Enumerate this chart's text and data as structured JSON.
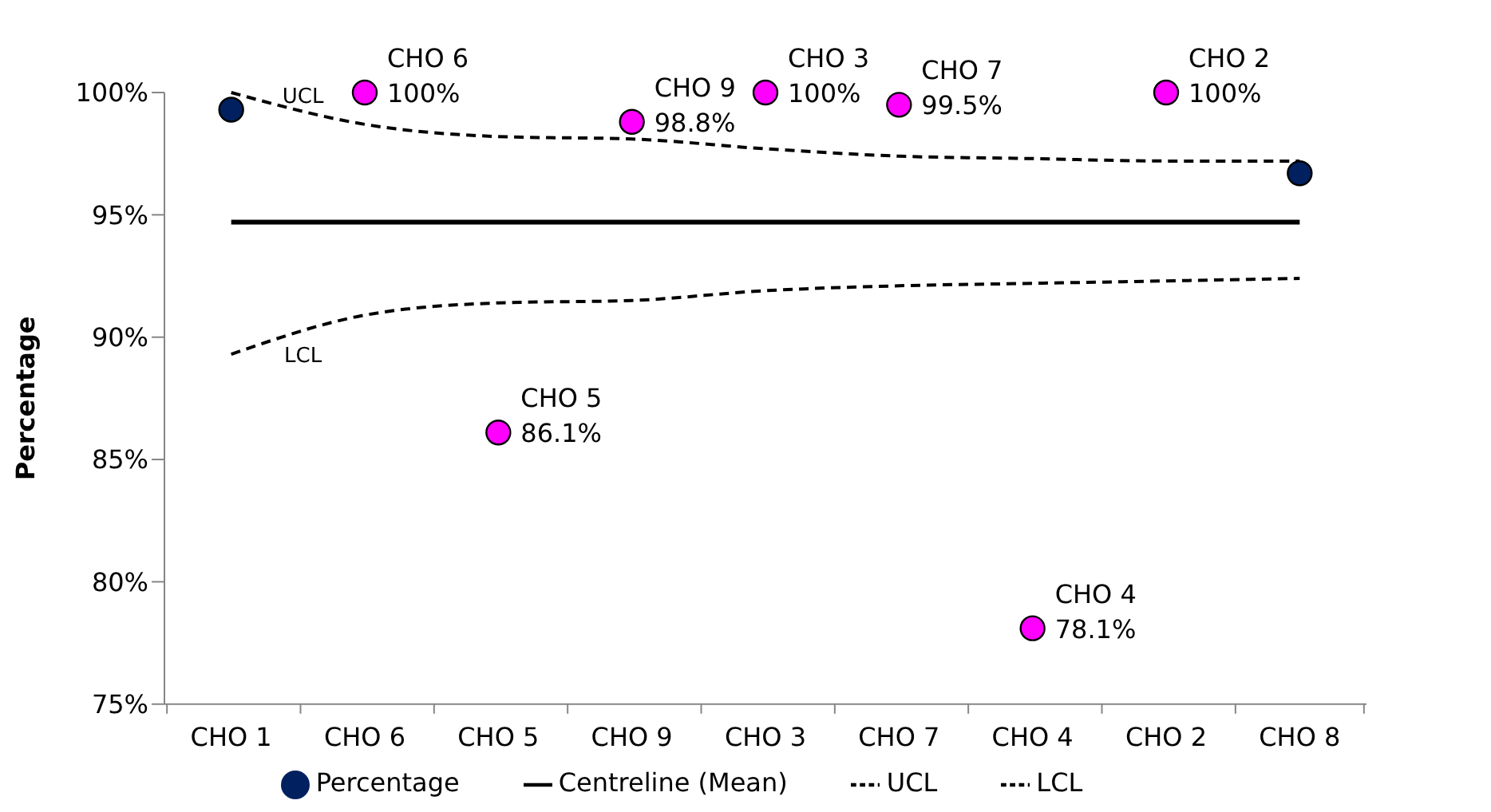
{
  "chart_data": {
    "type": "scatter",
    "ylabel": "Percentage",
    "categories": [
      "CHO 1",
      "CHO 6",
      "CHO 5",
      "CHO 9",
      "CHO 3",
      "CHO 7",
      "CHO 4",
      "CHO 2",
      "CHO 8"
    ],
    "series": [
      {
        "name": "Percentage",
        "type": "scatter",
        "marker": "circle",
        "color": "#002060",
        "colors": [
          "#002060",
          "#ff00ff",
          "#ff00ff",
          "#ff00ff",
          "#ff00ff",
          "#ff00ff",
          "#ff00ff",
          "#ff00ff",
          "#002060"
        ],
        "values": [
          99.3,
          100,
          86.1,
          98.8,
          100,
          99.5,
          78.1,
          100,
          96.7
        ],
        "value_labels": [
          null,
          "100%",
          "86.1%",
          "98.8%",
          "100%",
          "99.5%",
          "78.1%",
          "100%",
          null
        ]
      },
      {
        "name": "Centreline (Mean)",
        "type": "line",
        "line_style": "solid",
        "marker": "none",
        "color": "#000000",
        "values": [
          94.7,
          94.7,
          94.7,
          94.7,
          94.7,
          94.7,
          94.7,
          94.7,
          94.7
        ]
      },
      {
        "name": "UCL",
        "type": "line",
        "line_style": "dashed",
        "marker": "none",
        "color": "#000000",
        "values": [
          100,
          98.7,
          98.2,
          98.1,
          97.7,
          97.4,
          97.3,
          97.2,
          97.2
        ]
      },
      {
        "name": "LCL",
        "type": "line",
        "line_style": "dashed",
        "marker": "none",
        "color": "#000000",
        "values": [
          89.3,
          90.9,
          91.4,
          91.5,
          91.9,
          92.1,
          92.2,
          92.3,
          92.4
        ]
      }
    ],
    "ylim": [
      75,
      100
    ],
    "yticks": [
      {
        "value": 75,
        "label": "75%"
      },
      {
        "value": 80,
        "label": "80%"
      },
      {
        "value": 85,
        "label": "85%"
      },
      {
        "value": 90,
        "label": "90%"
      },
      {
        "value": 95,
        "label": "95%"
      },
      {
        "value": 100,
        "label": "100%"
      }
    ],
    "annotations": [
      {
        "text": "CHO 6",
        "x": "CHO 6",
        "y": 100
      },
      {
        "text": "CHO 5",
        "x": "CHO 5",
        "y": 86.1
      },
      {
        "text": "CHO 9",
        "x": "CHO 9",
        "y": 98.8
      },
      {
        "text": "CHO 3",
        "x": "CHO 3",
        "y": 100
      },
      {
        "text": "CHO 7",
        "x": "CHO 7",
        "y": 99.5
      },
      {
        "text": "CHO 4",
        "x": "CHO 4",
        "y": 78.1
      },
      {
        "text": "CHO 2",
        "x": "CHO 2",
        "y": 100
      },
      {
        "text": "UCL",
        "x": "CHO 1",
        "y": 99.9
      },
      {
        "text": "LCL",
        "x": "CHO 1",
        "y": 89.3
      }
    ],
    "grid": false,
    "legend": "bottom"
  }
}
